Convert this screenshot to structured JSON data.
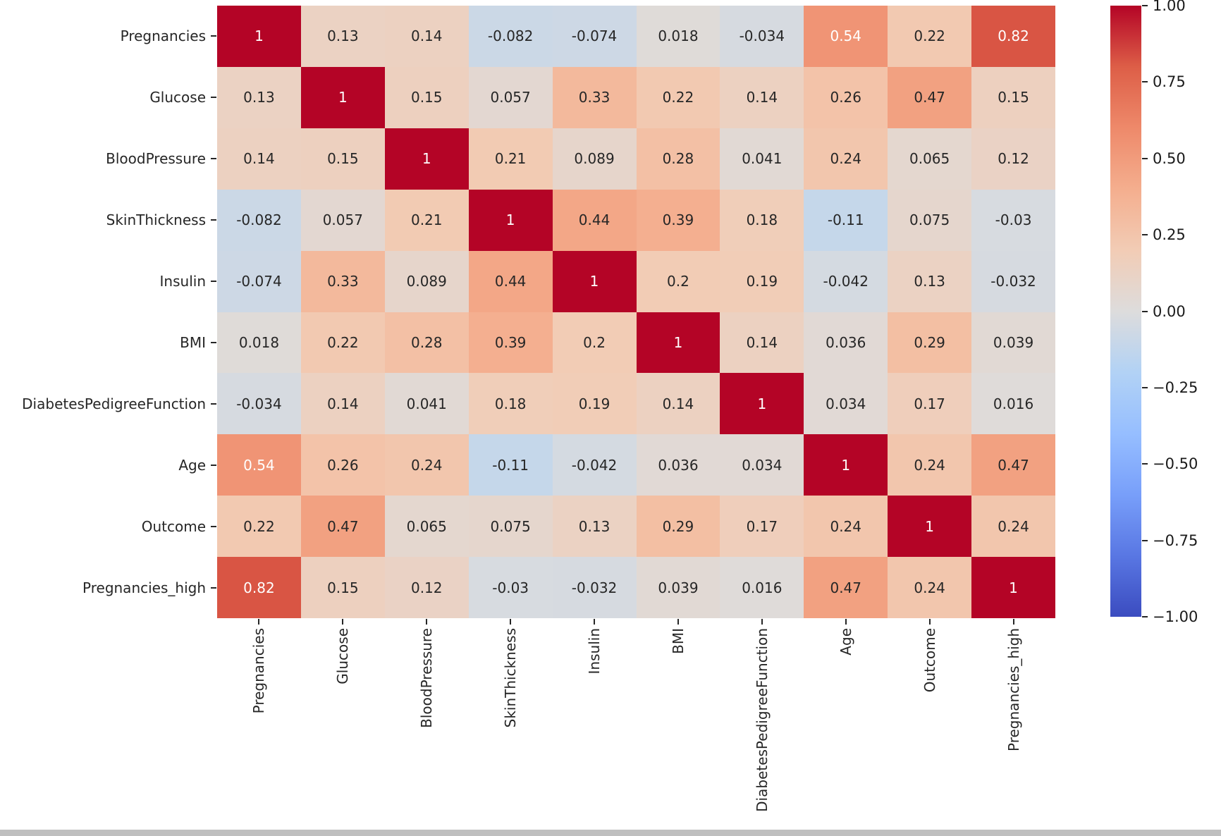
{
  "figure": {
    "background": "#ffffff",
    "scrollbar_color": "#bfbfbf"
  },
  "chart_data": {
    "type": "heatmap",
    "title": "",
    "xlabel": "",
    "ylabel": "",
    "labels": [
      "Pregnancies",
      "Glucose",
      "BloodPressure",
      "SkinThickness",
      "Insulin",
      "BMI",
      "DiabetesPedigreeFunction",
      "Age",
      "Outcome",
      "Pregnancies_high"
    ],
    "matrix": [
      [
        "1",
        "0.13",
        "0.14",
        "-0.082",
        "-0.074",
        "0.018",
        "-0.034",
        "0.54",
        "0.22",
        "0.82"
      ],
      [
        "0.13",
        "1",
        "0.15",
        "0.057",
        "0.33",
        "0.22",
        "0.14",
        "0.26",
        "0.47",
        "0.15"
      ],
      [
        "0.14",
        "0.15",
        "1",
        "0.21",
        "0.089",
        "0.28",
        "0.041",
        "0.24",
        "0.065",
        "0.12"
      ],
      [
        "-0.082",
        "0.057",
        "0.21",
        "1",
        "0.44",
        "0.39",
        "0.18",
        "-0.11",
        "0.075",
        "-0.03"
      ],
      [
        "-0.074",
        "0.33",
        "0.089",
        "0.44",
        "1",
        "0.2",
        "0.19",
        "-0.042",
        "0.13",
        "-0.032"
      ],
      [
        "0.018",
        "0.22",
        "0.28",
        "0.39",
        "0.2",
        "1",
        "0.14",
        "0.036",
        "0.29",
        "0.039"
      ],
      [
        "-0.034",
        "0.14",
        "0.041",
        "0.18",
        "0.19",
        "0.14",
        "1",
        "0.034",
        "0.17",
        "0.016"
      ],
      [
        "0.54",
        "0.26",
        "0.24",
        "-0.11",
        "-0.042",
        "0.036",
        "0.034",
        "1",
        "0.24",
        "0.47"
      ],
      [
        "0.22",
        "0.47",
        "0.065",
        "0.075",
        "0.13",
        "0.29",
        "0.17",
        "0.24",
        "1",
        "0.24"
      ],
      [
        "0.82",
        "0.15",
        "0.12",
        "-0.03",
        "-0.032",
        "0.039",
        "0.016",
        "0.47",
        "0.24",
        "1"
      ]
    ],
    "value_range": [
      -1,
      1
    ],
    "grid": false,
    "legend_position": "right-colorbar",
    "colormap": {
      "name": "coolwarm",
      "stops": [
        "#3b4cc0",
        "#5977e3",
        "#789ffa",
        "#96beff",
        "#b2d2f5",
        "#dddcdc",
        "#f2ccb5",
        "#f4ae8e",
        "#ee896a",
        "#dd5e47",
        "#b40426"
      ]
    },
    "colorbar_ticks": [
      {
        "label": "1.00",
        "value": 1.0
      },
      {
        "label": "0.75",
        "value": 0.75
      },
      {
        "label": "0.50",
        "value": 0.5
      },
      {
        "label": "0.25",
        "value": 0.25
      },
      {
        "label": "0.00",
        "value": 0.0
      },
      {
        "label": "−0.25",
        "value": -0.25
      },
      {
        "label": "−0.50",
        "value": -0.5
      },
      {
        "label": "−0.75",
        "value": -0.75
      },
      {
        "label": "−1.00",
        "value": -1.0
      }
    ],
    "annotation_dark_color": "#262626",
    "annotation_light_color": "#ffffff"
  }
}
